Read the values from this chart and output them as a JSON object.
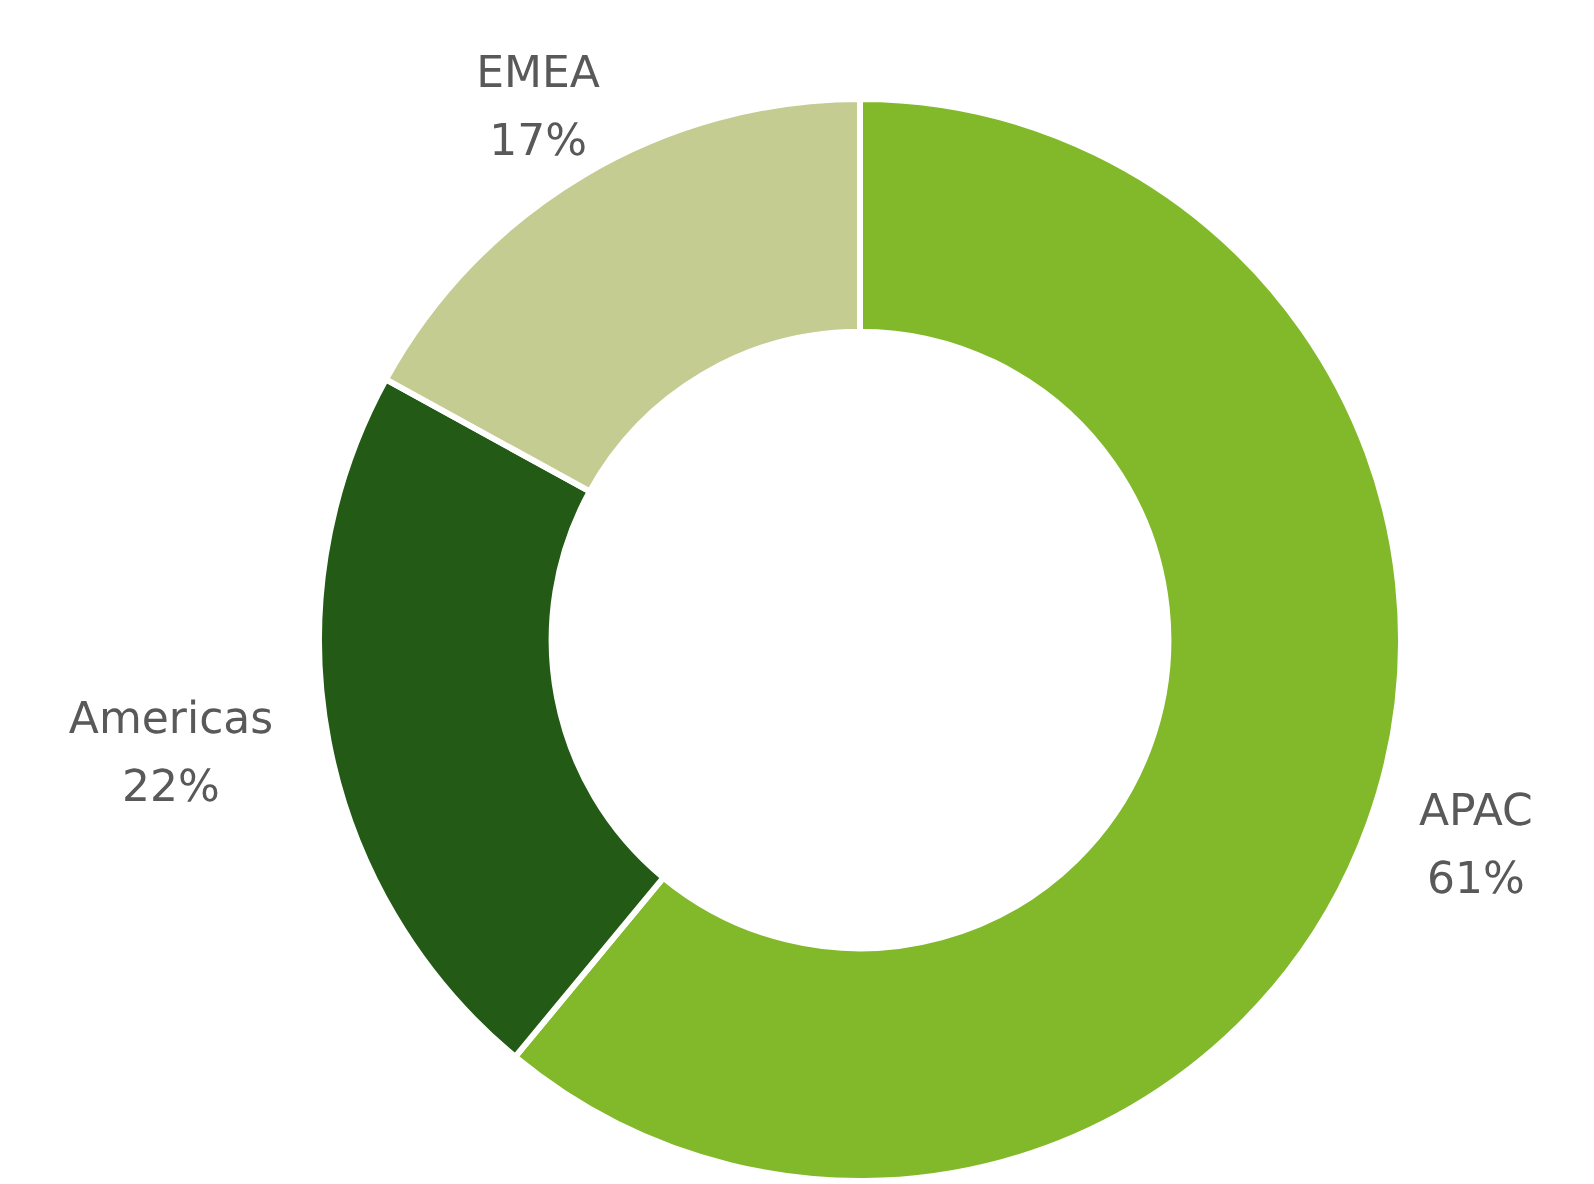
{
  "chart_data": {
    "type": "donut",
    "categories": [
      "APAC",
      "Americas",
      "EMEA"
    ],
    "values": [
      61,
      22,
      17
    ],
    "colors": [
      "#82b92a",
      "#235a15",
      "#c4cc92"
    ],
    "value_labels": [
      "61%",
      "22%",
      "17%"
    ],
    "legend": false
  }
}
